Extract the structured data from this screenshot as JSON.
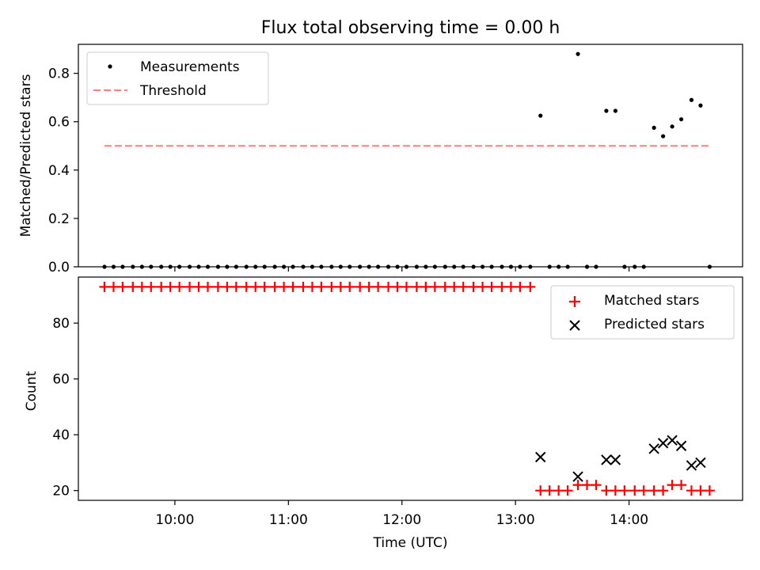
{
  "figure": {
    "title": "Flux total observing time = 0.00 h"
  },
  "chart_data": [
    {
      "type": "scatter",
      "title": "Flux total observing time = 0.00 h",
      "xlabel": "",
      "ylabel": "Matched/Predicted stars",
      "x_unit": "hours UTC",
      "xlim": [
        9.15,
        15.0
      ],
      "ylim": [
        0.0,
        0.92
      ],
      "yticks": [
        0.0,
        0.2,
        0.4,
        0.6,
        0.8
      ],
      "ytick_labels": [
        "0.0",
        "0.2",
        "0.4",
        "0.6",
        "0.8"
      ],
      "xticks": [
        10,
        11,
        12,
        13,
        14
      ],
      "xtick_labels": [
        "",
        "",
        "",
        "",
        ""
      ],
      "legend": "upper-left",
      "grid": false,
      "series": [
        {
          "name": "Measurements",
          "marker": "dot",
          "color": "#000000",
          "x": [
            9.38,
            9.46,
            9.54,
            9.63,
            9.71,
            9.79,
            9.88,
            9.96,
            10.04,
            10.13,
            10.21,
            10.29,
            10.38,
            10.46,
            10.54,
            10.63,
            10.71,
            10.79,
            10.88,
            10.96,
            11.04,
            11.13,
            11.21,
            11.29,
            11.38,
            11.46,
            11.54,
            11.63,
            11.71,
            11.79,
            11.88,
            11.96,
            12.04,
            12.13,
            12.21,
            12.29,
            12.38,
            12.46,
            12.54,
            12.63,
            12.71,
            12.79,
            12.88,
            12.96,
            13.04,
            13.13,
            13.22,
            13.3,
            13.38,
            13.46,
            13.55,
            13.63,
            13.71,
            13.8,
            13.88,
            13.96,
            14.05,
            14.13,
            14.22,
            14.3,
            14.38,
            14.46,
            14.55,
            14.63,
            14.71
          ],
          "y": [
            0,
            0,
            0,
            0,
            0,
            0,
            0,
            0,
            0,
            0,
            0,
            0,
            0,
            0,
            0,
            0,
            0,
            0,
            0,
            0,
            0,
            0,
            0,
            0,
            0,
            0,
            0,
            0,
            0,
            0,
            0,
            0,
            0,
            0,
            0,
            0,
            0,
            0,
            0,
            0,
            0,
            0,
            0,
            0,
            0,
            0,
            0.625,
            0,
            0,
            0,
            0.88,
            0,
            0,
            0.645,
            0.645,
            0,
            0,
            0,
            0.575,
            0.54,
            0.58,
            0.61,
            0.69,
            0.667,
            0
          ]
        },
        {
          "name": "Threshold",
          "marker": "dashed-line",
          "color": "#ff7f7f",
          "x": [
            9.38,
            14.71
          ],
          "y": [
            0.5,
            0.5
          ]
        }
      ]
    },
    {
      "type": "scatter",
      "title": "",
      "xlabel": "Time (UTC)",
      "ylabel": "Count",
      "x_unit": "hours UTC",
      "xlim": [
        9.15,
        15.0
      ],
      "ylim": [
        16.5,
        96.5
      ],
      "yticks": [
        20,
        40,
        60,
        80
      ],
      "ytick_labels": [
        "20",
        "40",
        "60",
        "80"
      ],
      "xticks": [
        10,
        11,
        12,
        13,
        14
      ],
      "xtick_labels": [
        "10:00",
        "11:00",
        "12:00",
        "13:00",
        "14:00"
      ],
      "legend": "upper-right",
      "grid": false,
      "series": [
        {
          "name": "Matched stars",
          "marker": "plus",
          "color": "#ff0000",
          "x": [
            9.38,
            9.46,
            9.54,
            9.63,
            9.71,
            9.79,
            9.88,
            9.96,
            10.04,
            10.13,
            10.21,
            10.29,
            10.38,
            10.46,
            10.54,
            10.63,
            10.71,
            10.79,
            10.88,
            10.96,
            11.04,
            11.13,
            11.21,
            11.29,
            11.38,
            11.46,
            11.54,
            11.63,
            11.71,
            11.79,
            11.88,
            11.96,
            12.04,
            12.13,
            12.21,
            12.29,
            12.38,
            12.46,
            12.54,
            12.63,
            12.71,
            12.79,
            12.88,
            12.96,
            13.04,
            13.13,
            13.22,
            13.3,
            13.38,
            13.46,
            13.55,
            13.63,
            13.71,
            13.8,
            13.88,
            13.96,
            14.05,
            14.13,
            14.22,
            14.3,
            14.38,
            14.46,
            14.55,
            14.63,
            14.71
          ],
          "y": [
            93,
            93,
            93,
            93,
            93,
            93,
            93,
            93,
            93,
            93,
            93,
            93,
            93,
            93,
            93,
            93,
            93,
            93,
            93,
            93,
            93,
            93,
            93,
            93,
            93,
            93,
            93,
            93,
            93,
            93,
            93,
            93,
            93,
            93,
            93,
            93,
            93,
            93,
            93,
            93,
            93,
            93,
            93,
            93,
            93,
            93,
            20,
            20,
            20,
            20,
            22,
            22,
            22,
            20,
            20,
            20,
            20,
            20,
            20,
            20,
            22,
            22,
            20,
            20,
            20
          ]
        },
        {
          "name": "Predicted stars",
          "marker": "x",
          "color": "#000000",
          "x": [
            13.22,
            13.55,
            13.8,
            13.88,
            14.22,
            14.3,
            14.38,
            14.46,
            14.55,
            14.63
          ],
          "y": [
            32,
            25,
            31,
            31,
            35,
            37,
            38,
            36,
            29,
            30
          ]
        }
      ]
    }
  ]
}
